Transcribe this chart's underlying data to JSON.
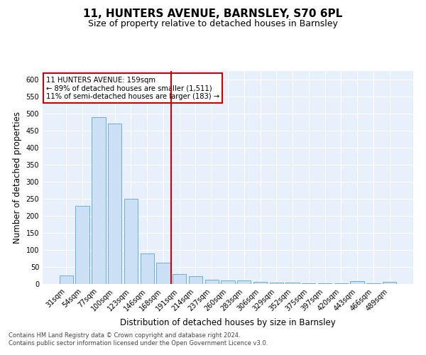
{
  "title": "11, HUNTERS AVENUE, BARNSLEY, S70 6PL",
  "subtitle": "Size of property relative to detached houses in Barnsley",
  "xlabel": "Distribution of detached houses by size in Barnsley",
  "ylabel": "Number of detached properties",
  "categories": [
    "31sqm",
    "54sqm",
    "77sqm",
    "100sqm",
    "123sqm",
    "146sqm",
    "168sqm",
    "191sqm",
    "214sqm",
    "237sqm",
    "260sqm",
    "283sqm",
    "306sqm",
    "329sqm",
    "352sqm",
    "375sqm",
    "397sqm",
    "420sqm",
    "443sqm",
    "466sqm",
    "489sqm"
  ],
  "values": [
    25,
    230,
    490,
    470,
    250,
    90,
    63,
    30,
    22,
    13,
    11,
    10,
    6,
    5,
    4,
    3,
    3,
    3,
    8,
    3,
    7
  ],
  "bar_color": "#cce0f5",
  "bar_edge_color": "#6aaed6",
  "vline_x": 6.5,
  "vline_color": "#cc0000",
  "annotation_text": "11 HUNTERS AVENUE: 159sqm\n← 89% of detached houses are smaller (1,511)\n11% of semi-detached houses are larger (183) →",
  "annotation_box_color": "#ffffff",
  "annotation_box_edge": "#cc0000",
  "footer_text": "Contains HM Land Registry data © Crown copyright and database right 2024.\nContains public sector information licensed under the Open Government Licence v3.0.",
  "ylim": [
    0,
    625
  ],
  "yticks": [
    0,
    50,
    100,
    150,
    200,
    250,
    300,
    350,
    400,
    450,
    500,
    550,
    600
  ],
  "bg_color": "#e8f0fb",
  "grid_color": "#ffffff",
  "title_fontsize": 11,
  "subtitle_fontsize": 9,
  "tick_fontsize": 7,
  "ylabel_fontsize": 8.5,
  "xlabel_fontsize": 8.5,
  "footer_fontsize": 6,
  "footer_color": "#444444"
}
